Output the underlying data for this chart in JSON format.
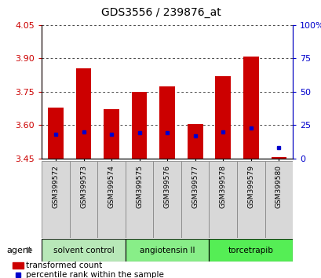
{
  "title": "GDS3556 / 239876_at",
  "samples": [
    "GSM399572",
    "GSM399573",
    "GSM399574",
    "GSM399575",
    "GSM399576",
    "GSM399577",
    "GSM399578",
    "GSM399579",
    "GSM399580"
  ],
  "transformed_counts": [
    3.68,
    3.855,
    3.67,
    3.75,
    3.775,
    3.605,
    3.82,
    3.91,
    3.455
  ],
  "percentile_ranks": [
    18,
    20,
    18,
    19,
    19,
    17,
    20,
    23,
    8
  ],
  "baseline": 3.45,
  "ylim": [
    3.45,
    4.05
  ],
  "yticks_left": [
    3.45,
    3.6,
    3.75,
    3.9,
    4.05
  ],
  "yticks_right": [
    0,
    25,
    50,
    75,
    100
  ],
  "bar_color": "#cc0000",
  "pct_color": "#0000cc",
  "groups": [
    {
      "label": "solvent control",
      "samples": [
        0,
        1,
        2
      ],
      "color": "#b8e8b8"
    },
    {
      "label": "angiotensin II",
      "samples": [
        3,
        4,
        5
      ],
      "color": "#88ee88"
    },
    {
      "label": "torcetrapib",
      "samples": [
        6,
        7,
        8
      ],
      "color": "#55ee55"
    }
  ],
  "agent_label": "agent",
  "legend_red": "transformed count",
  "legend_blue": "percentile rank within the sample",
  "title_fontsize": 10,
  "axis_color_left": "#cc0000",
  "axis_color_right": "#0000cc",
  "bar_width": 0.55,
  "sample_box_color": "#d8d8d8",
  "sample_box_edge": "#888888"
}
